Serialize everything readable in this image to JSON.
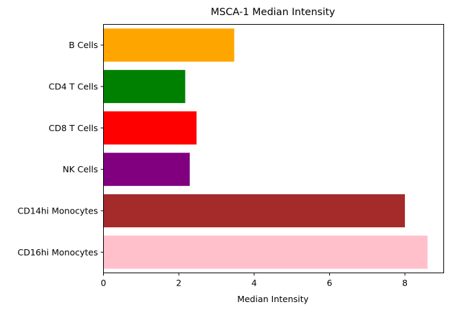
{
  "chart_data": {
    "type": "bar",
    "orientation": "horizontal",
    "title": "MSCA-1 Median Intensity",
    "xlabel": "Median Intensity",
    "ylabel": "",
    "categories": [
      "B Cells",
      "CD4 T Cells",
      "CD8 T Cells",
      "NK Cells",
      "CD14hi Monocytes",
      "CD16hi Monocytes"
    ],
    "values": [
      3.47,
      2.17,
      2.47,
      2.29,
      8.0,
      8.6
    ],
    "colors": [
      "#ffa500",
      "#008000",
      "#ff0000",
      "#800080",
      "#a52a2a",
      "#ffc0cb"
    ],
    "xlim": [
      0,
      9.03
    ],
    "xticks": [
      0,
      2,
      4,
      6,
      8
    ],
    "grid": false,
    "legend": "none"
  }
}
